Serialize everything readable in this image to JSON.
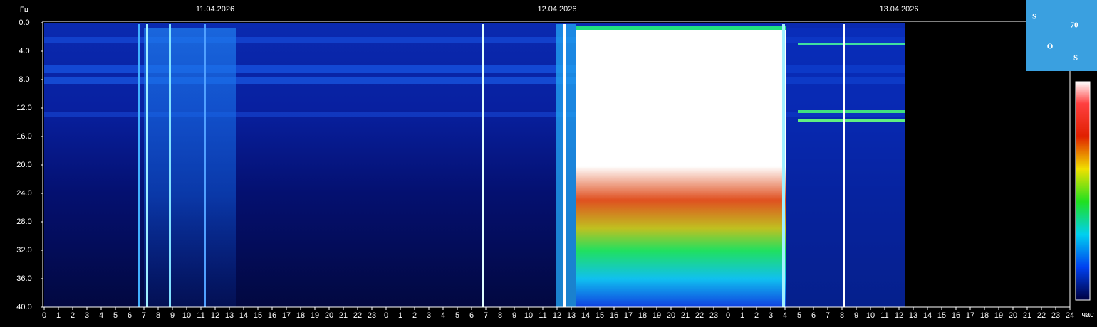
{
  "chart_data": {
    "type": "spectrogram",
    "y_label": "Гц",
    "x_label": "час",
    "logo": [
      "S",
      "70",
      "O",
      "S"
    ],
    "xlim": [
      0,
      72
    ],
    "ylim": [
      0,
      40
    ],
    "date_labels": [
      {
        "text": "11.04.2026",
        "x": 12
      },
      {
        "text": "12.04.2026",
        "x": 36
      },
      {
        "text": "13.04.2026",
        "x": 60
      }
    ],
    "yticks": [
      {
        "value": 0,
        "label": "0.0"
      },
      {
        "value": 4,
        "label": "4.0"
      },
      {
        "value": 8,
        "label": "8.0"
      },
      {
        "value": 12,
        "label": "12.0"
      },
      {
        "value": 16,
        "label": "16.0"
      },
      {
        "value": 20,
        "label": "20.0"
      },
      {
        "value": 24,
        "label": "24.0"
      },
      {
        "value": 28,
        "label": "28.0"
      },
      {
        "value": 32,
        "label": "32.0"
      },
      {
        "value": 36,
        "label": "36.0"
      },
      {
        "value": 40,
        "label": "40.0"
      }
    ],
    "xticks": [
      0,
      1,
      2,
      3,
      4,
      5,
      6,
      7,
      8,
      9,
      10,
      11,
      12,
      13,
      14,
      15,
      16,
      17,
      18,
      19,
      20,
      21,
      22,
      23,
      {
        "value": 24,
        "label": "0"
      },
      {
        "value": 25,
        "label": "1"
      },
      {
        "value": 26,
        "label": "2"
      },
      {
        "value": 27,
        "label": "3"
      },
      {
        "value": 28,
        "label": "4"
      },
      {
        "value": 29,
        "label": "5"
      },
      {
        "value": 30,
        "label": "6"
      },
      {
        "value": 31,
        "label": "7"
      },
      {
        "value": 32,
        "label": "8"
      },
      {
        "value": 33,
        "label": "9"
      },
      {
        "value": 34,
        "label": "10"
      },
      {
        "value": 35,
        "label": "11"
      },
      {
        "value": 36,
        "label": "12"
      },
      {
        "value": 37,
        "label": "13"
      },
      {
        "value": 38,
        "label": "14"
      },
      {
        "value": 39,
        "label": "15"
      },
      {
        "value": 40,
        "label": "16"
      },
      {
        "value": 41,
        "label": "17"
      },
      {
        "value": 42,
        "label": "18"
      },
      {
        "value": 43,
        "label": "19"
      },
      {
        "value": 44,
        "label": "20"
      },
      {
        "value": 45,
        "label": "21"
      },
      {
        "value": 46,
        "label": "22"
      },
      {
        "value": 47,
        "label": "23"
      },
      {
        "value": 48,
        "label": "0"
      },
      {
        "value": 49,
        "label": "1"
      },
      {
        "value": 50,
        "label": "2"
      },
      {
        "value": 51,
        "label": "3"
      },
      {
        "value": 52,
        "label": "4"
      },
      {
        "value": 53,
        "label": "5"
      },
      {
        "value": 54,
        "label": "6"
      },
      {
        "value": 55,
        "label": "7"
      },
      {
        "value": 56,
        "label": "8"
      },
      {
        "value": 57,
        "label": "9"
      },
      {
        "value": 58,
        "label": "10"
      },
      {
        "value": 59,
        "label": "11"
      },
      {
        "value": 60,
        "label": "12"
      },
      {
        "value": 61,
        "label": "13"
      },
      {
        "value": 62,
        "label": "14"
      },
      {
        "value": 63,
        "label": "15"
      },
      {
        "value": 64,
        "label": "16"
      },
      {
        "value": 65,
        "label": "17"
      },
      {
        "value": 66,
        "label": "18"
      },
      {
        "value": 67,
        "label": "19"
      },
      {
        "value": 68,
        "label": "20"
      },
      {
        "value": 69,
        "label": "21"
      },
      {
        "value": 70,
        "label": "22"
      },
      {
        "value": 71,
        "label": "23"
      },
      {
        "value": 72,
        "label": "24"
      }
    ]
  }
}
